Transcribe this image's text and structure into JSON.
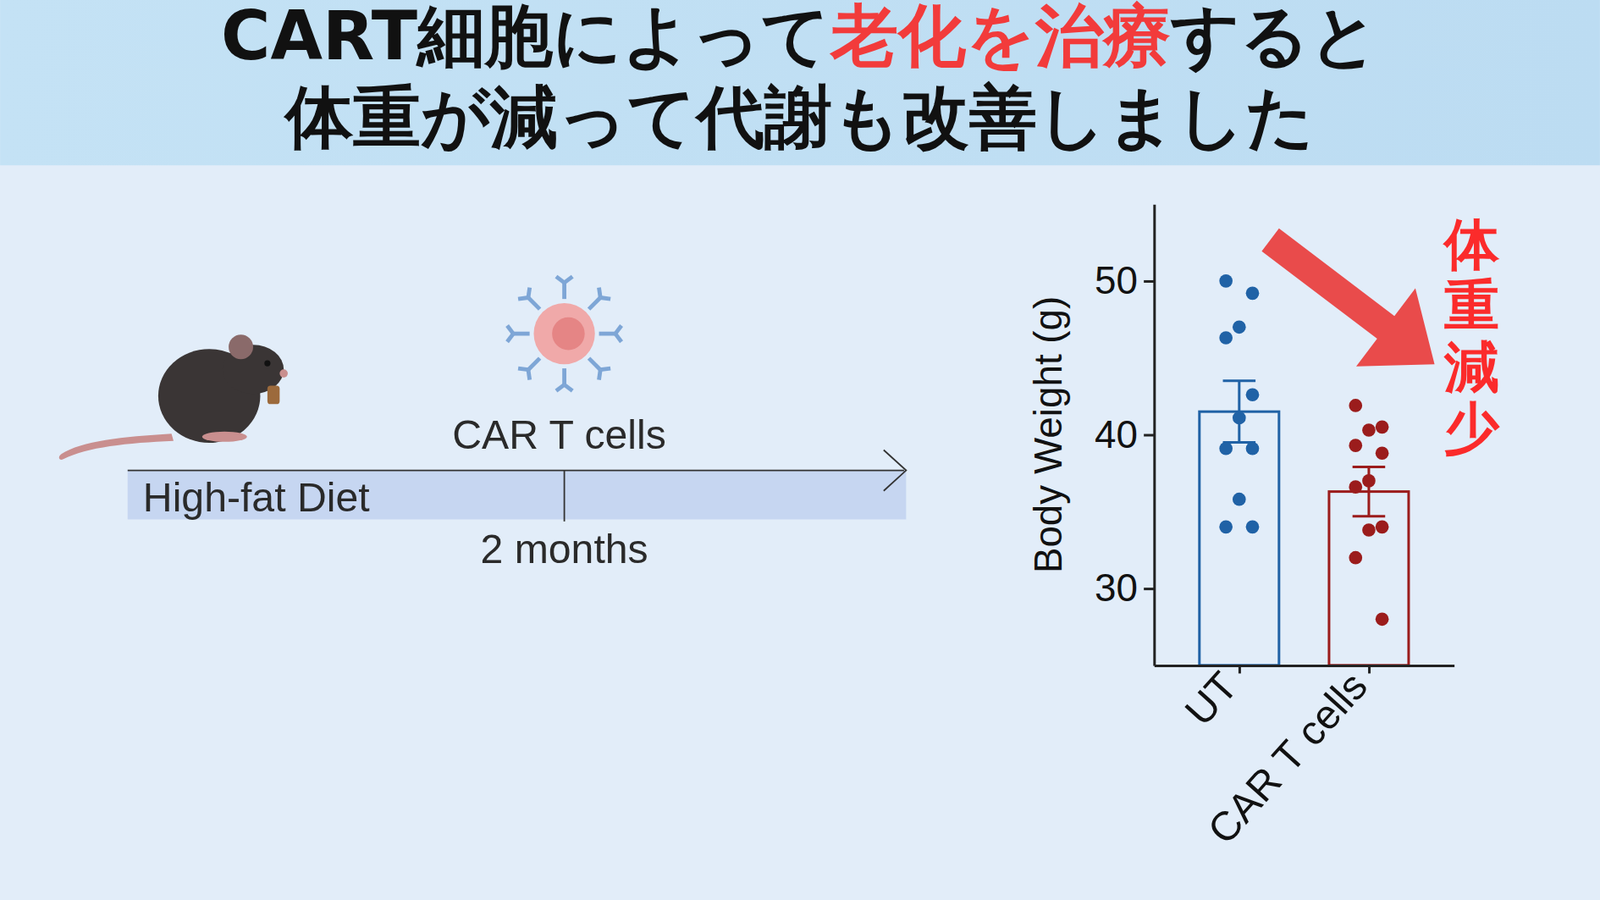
{
  "header": {
    "lines": [
      [
        {
          "text": "CART細胞によって"
        },
        {
          "text": "老化を治療",
          "color": "#f23b3b"
        },
        {
          "text": "すると"
        }
      ],
      [
        {
          "text": "体重が減って代謝も改善しました"
        }
      ]
    ]
  },
  "schematic": {
    "treatment": "CAR T cells",
    "diet": "High-fat Diet",
    "duration": "2 months"
  },
  "chart_data": {
    "type": "bar",
    "categories": [
      "UT",
      "CAR T cells"
    ],
    "values": [
      41.5,
      36.3
    ],
    "errors": [
      2.0,
      1.6
    ],
    "points": [
      [
        50.0,
        49.2,
        47.0,
        46.3,
        42.6,
        41.1,
        39.1,
        39.1,
        35.8,
        34.0,
        34.0
      ],
      [
        41.9,
        40.5,
        40.3,
        39.3,
        38.8,
        37.0,
        36.6,
        34.0,
        33.8,
        32.0,
        28.0
      ]
    ],
    "colors": [
      "#2062a6",
      "#9b1c1c"
    ],
    "ylabel": "Body Weight (g)",
    "ylim": [
      25,
      55
    ],
    "yticks": [
      30,
      40,
      50
    ],
    "annotation": "体重減少"
  }
}
